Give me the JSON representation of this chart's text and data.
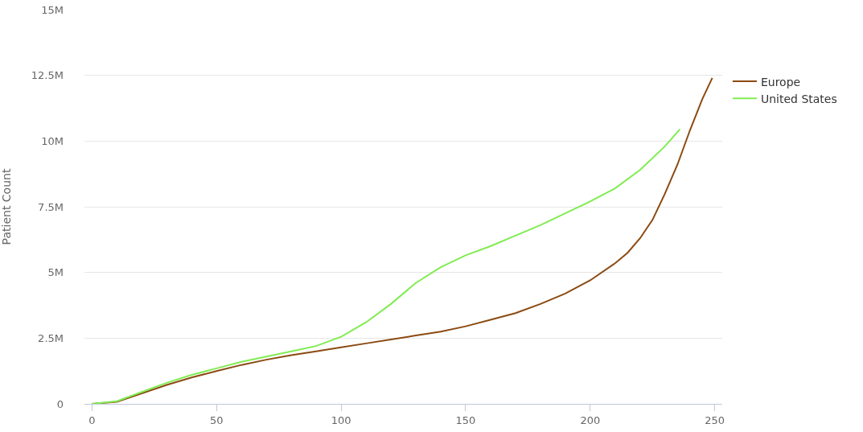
{
  "chart_data": {
    "type": "line",
    "ylabel": "Patient Count",
    "xlim": [
      -3,
      253
    ],
    "xticks": [
      0,
      50,
      100,
      150,
      200,
      250
    ],
    "ylim": [
      0,
      15
    ],
    "yticks": [
      0,
      {
        "value": 2.5,
        "label": "2.5M"
      },
      {
        "value": 5,
        "label": "5M"
      },
      {
        "value": 7.5,
        "label": "7.5M"
      },
      {
        "value": 10,
        "label": "10M"
      },
      {
        "value": 12.5,
        "label": "12.5M"
      },
      {
        "value": 15,
        "label": "15M"
      }
    ],
    "grid": "y",
    "legend": "top right",
    "series": [
      {
        "name": "Europe",
        "color": "#8b4a12",
        "x": [
          0,
          10,
          20,
          30,
          40,
          50,
          60,
          70,
          80,
          90,
          100,
          110,
          120,
          130,
          140,
          150,
          160,
          170,
          180,
          190,
          200,
          210,
          215,
          220,
          225,
          230,
          235,
          240,
          245,
          249
        ],
        "values": [
          0,
          0.08,
          0.4,
          0.72,
          1.0,
          1.25,
          1.48,
          1.68,
          1.85,
          2.0,
          2.15,
          2.3,
          2.45,
          2.6,
          2.75,
          2.95,
          3.2,
          3.45,
          3.8,
          4.2,
          4.7,
          5.35,
          5.75,
          6.3,
          7.0,
          8.0,
          9.1,
          10.4,
          11.6,
          12.4
        ]
      },
      {
        "name": "United States",
        "color": "#80ec52",
        "x": [
          0,
          10,
          20,
          30,
          40,
          50,
          60,
          70,
          80,
          90,
          100,
          110,
          120,
          130,
          140,
          150,
          160,
          170,
          180,
          190,
          200,
          210,
          220,
          230,
          236
        ],
        "values": [
          0,
          0.1,
          0.45,
          0.8,
          1.1,
          1.35,
          1.6,
          1.8,
          2.0,
          2.2,
          2.55,
          3.1,
          3.8,
          4.6,
          5.2,
          5.65,
          6.0,
          6.4,
          6.8,
          7.25,
          7.7,
          8.2,
          8.9,
          9.8,
          10.45
        ]
      }
    ]
  }
}
